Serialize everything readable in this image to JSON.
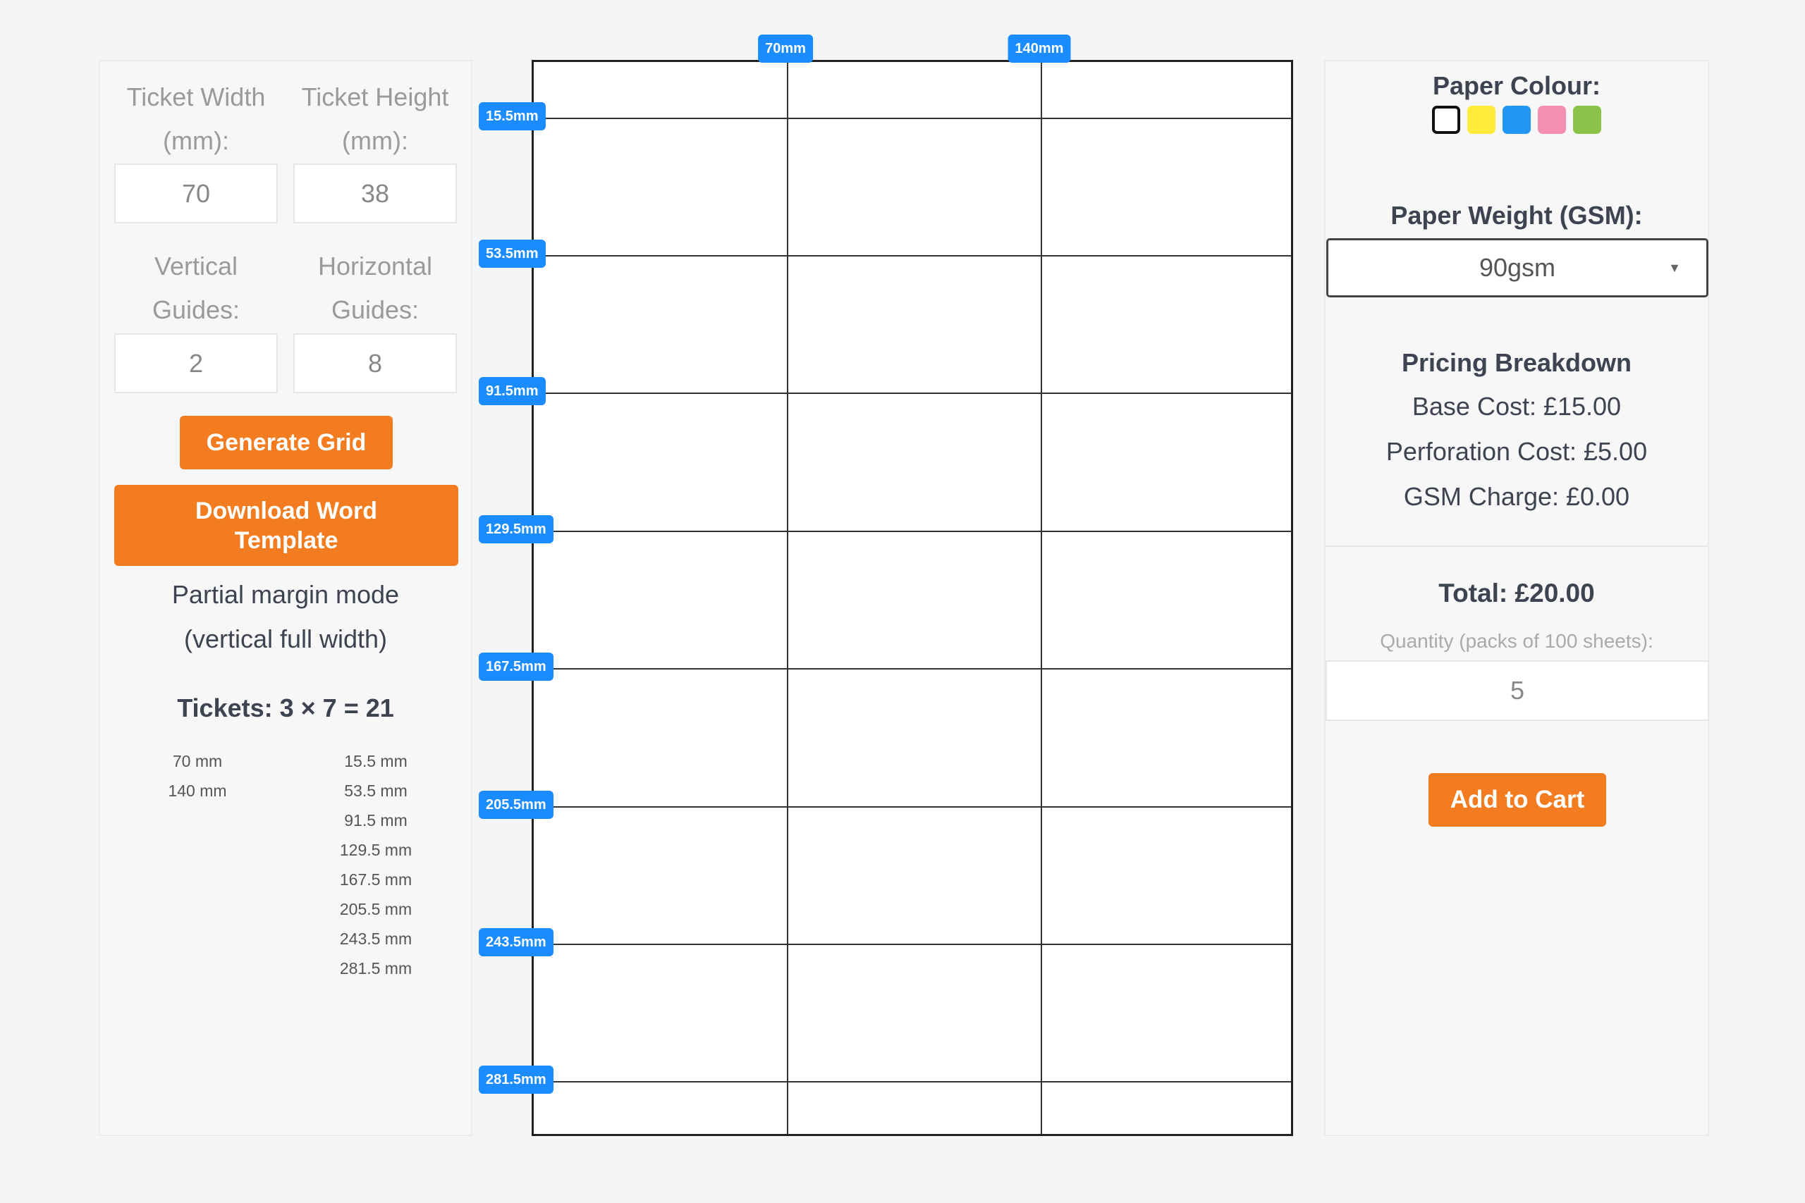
{
  "left": {
    "ticket_width_label": "Ticket Width (mm):",
    "ticket_height_label": "Ticket Height (mm):",
    "ticket_width_value": "70",
    "ticket_height_value": "38",
    "vertical_guides_label": "Vertical Guides:",
    "horizontal_guides_label": "Horizontal Guides:",
    "vertical_guides_value": "2",
    "horizontal_guides_value": "8",
    "generate_label": "Generate Grid",
    "download_label": "Download Word Template",
    "mode_line1": "Partial margin mode",
    "mode_line2": "(vertical full width)",
    "tickets_summary": "Tickets: 3 × 7 = 21",
    "vertical_list": [
      "70 mm",
      "140 mm"
    ],
    "horizontal_list": [
      "15.5 mm",
      "53.5 mm",
      "91.5 mm",
      "129.5 mm",
      "167.5 mm",
      "205.5 mm",
      "243.5 mm",
      "281.5 mm"
    ]
  },
  "sheet": {
    "page_mm": [
      210,
      297
    ],
    "vertical_guides_mm": [
      70,
      140
    ],
    "vertical_labels": [
      "70mm",
      "140mm"
    ],
    "horizontal_guides_mm": [
      15.5,
      53.5,
      91.5,
      129.5,
      167.5,
      205.5,
      243.5,
      281.5
    ],
    "horizontal_labels": [
      "15.5mm",
      "53.5mm",
      "91.5mm",
      "129.5mm",
      "167.5mm",
      "205.5mm",
      "243.5mm",
      "281.5mm"
    ]
  },
  "right": {
    "paper_colour_label": "Paper Colour:",
    "colours": [
      "#ffffff",
      "#ffeb3b",
      "#2196f3",
      "#f48fb1",
      "#8bc34a"
    ],
    "selected_colour": "#ffffff",
    "paper_weight_label": "Paper Weight (GSM):",
    "paper_weight_value": "90gsm",
    "pricing_title": "Pricing Breakdown",
    "base_cost": "Base Cost: £15.00",
    "perforation_cost": "Perforation Cost: £5.00",
    "gsm_charge": "GSM Charge: £0.00",
    "total": "Total: £20.00",
    "quantity_label": "Quantity (packs of 100 sheets):",
    "quantity_value": "5",
    "add_to_cart_label": "Add to Cart"
  },
  "colors": {
    "accent": "#f47c20",
    "guide_label": "#1a8cff"
  }
}
